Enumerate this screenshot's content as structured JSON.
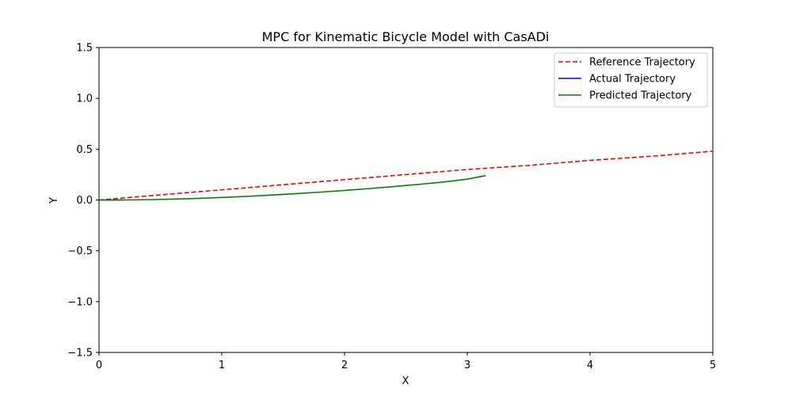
{
  "chart_data": {
    "type": "line",
    "title": "MPC for Kinematic Bicycle Model with CasADi",
    "xlabel": "X",
    "ylabel": "Y",
    "xlim": [
      0,
      5
    ],
    "ylim": [
      -1.5,
      1.5
    ],
    "x_ticks": [
      0,
      1,
      2,
      3,
      4,
      5
    ],
    "x_tick_labels": [
      "0",
      "1",
      "2",
      "3",
      "4",
      "5"
    ],
    "y_ticks": [
      -1.5,
      -1.0,
      -0.5,
      0.0,
      0.5,
      1.0,
      1.5
    ],
    "y_tick_labels": [
      "−1.5",
      "−1.0",
      "−0.5",
      "0.0",
      "0.5",
      "1.0",
      "1.5"
    ],
    "grid": false,
    "legend_position": "top-right",
    "series": [
      {
        "name": "Reference Trajectory",
        "color": "#ff0000",
        "style": "dashed",
        "x": [
          0,
          0.5,
          1,
          1.5,
          2,
          2.5,
          3,
          3.5,
          4,
          4.5,
          5
        ],
        "y": [
          0,
          0.05,
          0.1,
          0.15,
          0.2,
          0.25,
          0.3,
          0.34,
          0.39,
          0.43,
          0.48
        ]
      },
      {
        "name": "Actual Trajectory",
        "color": "#0000ff",
        "style": "solid",
        "x": [
          0,
          0.05,
          0.1,
          0.15,
          0.2
        ],
        "y": [
          0,
          0,
          0,
          0,
          0
        ]
      },
      {
        "name": "Predicted Trajectory",
        "color": "#008000",
        "style": "solid",
        "x": [
          0,
          0.2,
          0.4,
          0.6,
          0.8,
          1.0,
          1.2,
          1.4,
          1.6,
          1.8,
          2.0,
          2.2,
          2.4,
          2.6,
          2.8,
          3.0,
          3.15
        ],
        "y": [
          0,
          0.0,
          0.003,
          0.008,
          0.015,
          0.025,
          0.035,
          0.048,
          0.062,
          0.077,
          0.094,
          0.112,
          0.132,
          0.153,
          0.176,
          0.205,
          0.24
        ]
      }
    ]
  }
}
